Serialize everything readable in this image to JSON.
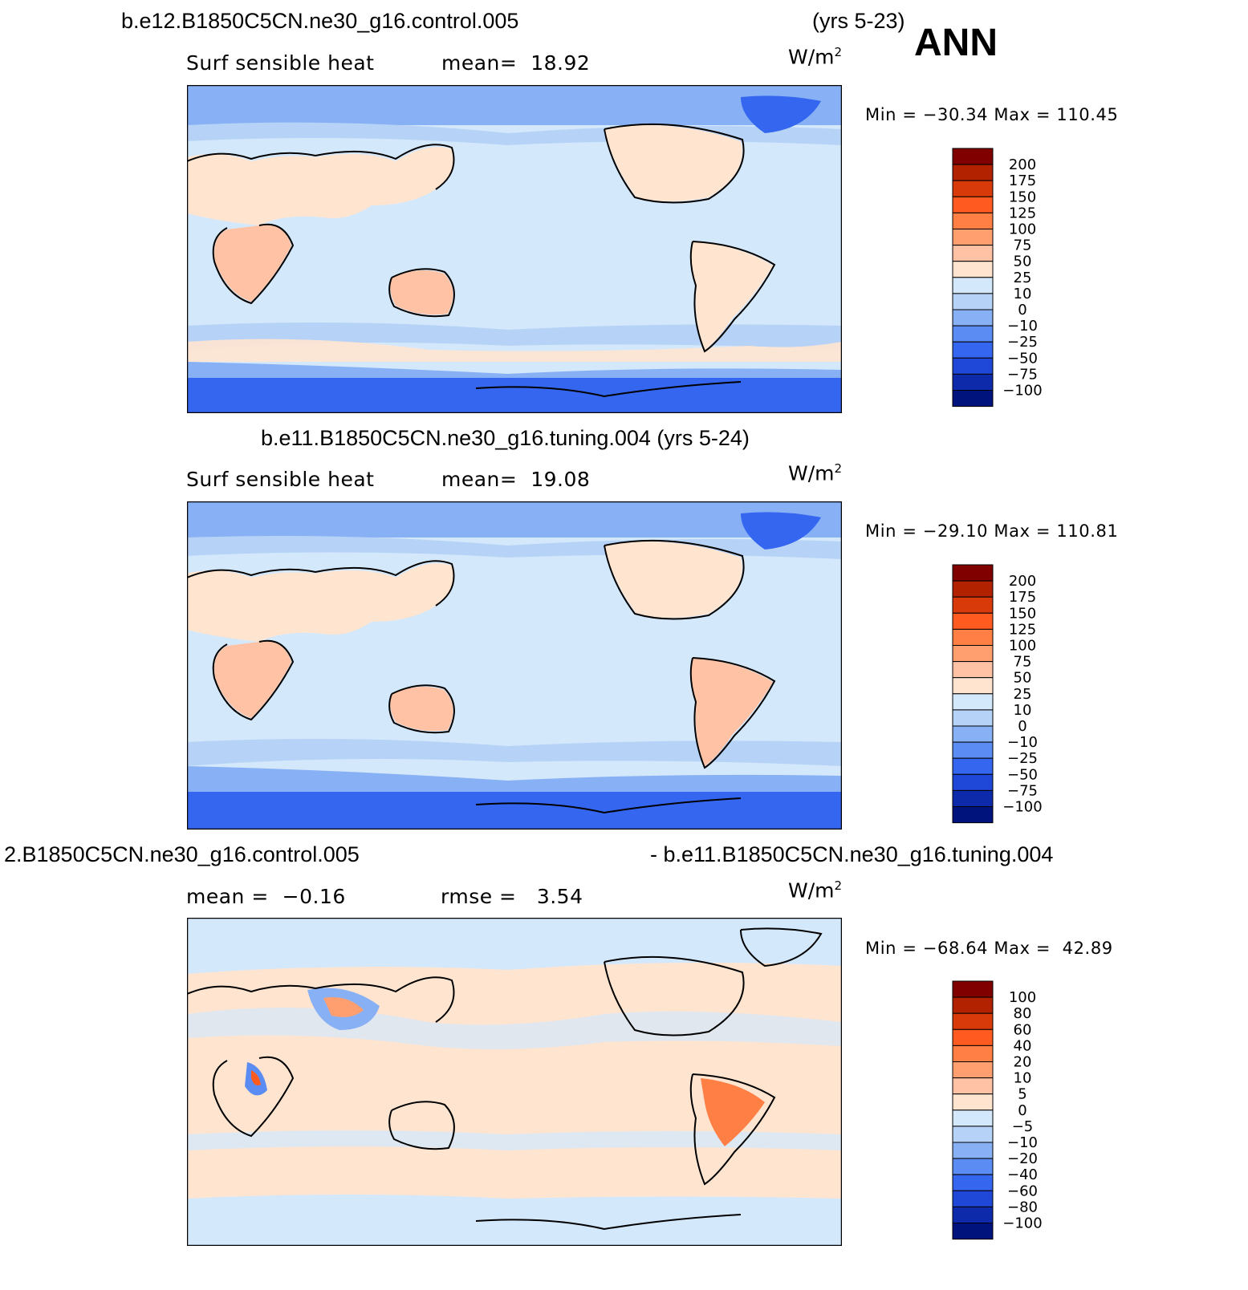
{
  "season": "ANN",
  "panels": [
    {
      "title_left": "b.e12.B1850C5CN.ne30_g16.control.005",
      "title_right": "(yrs 5-23)",
      "label_left": "Surf sensible heat",
      "label_mid": "mean=  18.92",
      "units": "W/m",
      "units_exp": "2",
      "minmax": "Min = −30.34 Max = 110.45",
      "colorbar_labels": [
        "200",
        "175",
        "150",
        "125",
        "100",
        "75",
        "50",
        "25",
        "10",
        "0",
        "−10",
        "−25",
        "−50",
        "−75",
        "−100"
      ]
    },
    {
      "title_center": "b.e11.B1850C5CN.ne30_g16.tuning.004 (yrs 5-24)",
      "label_left": "Surf sensible heat",
      "label_mid": "mean=  19.08",
      "units": "W/m",
      "units_exp": "2",
      "minmax": "Min = −29.10 Max = 110.81",
      "colorbar_labels": [
        "200",
        "175",
        "150",
        "125",
        "100",
        "75",
        "50",
        "25",
        "10",
        "0",
        "−10",
        "−25",
        "−50",
        "−75",
        "−100"
      ]
    },
    {
      "title_left": "2.B1850C5CN.ne30_g16.control.005",
      "title_right": "- b.e11.B1850C5CN.ne30_g16.tuning.004",
      "label_left": "mean =  −0.16",
      "label_mid": "rmse =   3.54",
      "units": "W/m",
      "units_exp": "2",
      "minmax": "Min = −68.64 Max =  42.89",
      "colorbar_labels": [
        "100",
        "80",
        "60",
        "40",
        "20",
        "10",
        "5",
        "0",
        "−5",
        "−10",
        "−20",
        "−40",
        "−60",
        "−80",
        "−100"
      ]
    }
  ],
  "colorbar_colors": [
    "#800000",
    "#b22200",
    "#d93a0a",
    "#ff5a1f",
    "#ff7f45",
    "#ff9f70",
    "#ffc2a4",
    "#ffe4d0",
    "#d4e8fb",
    "#b6d3f7",
    "#88b1f5",
    "#5a8cf3",
    "#3566f0",
    "#1f47d8",
    "#0d2aab",
    "#00127c"
  ]
}
